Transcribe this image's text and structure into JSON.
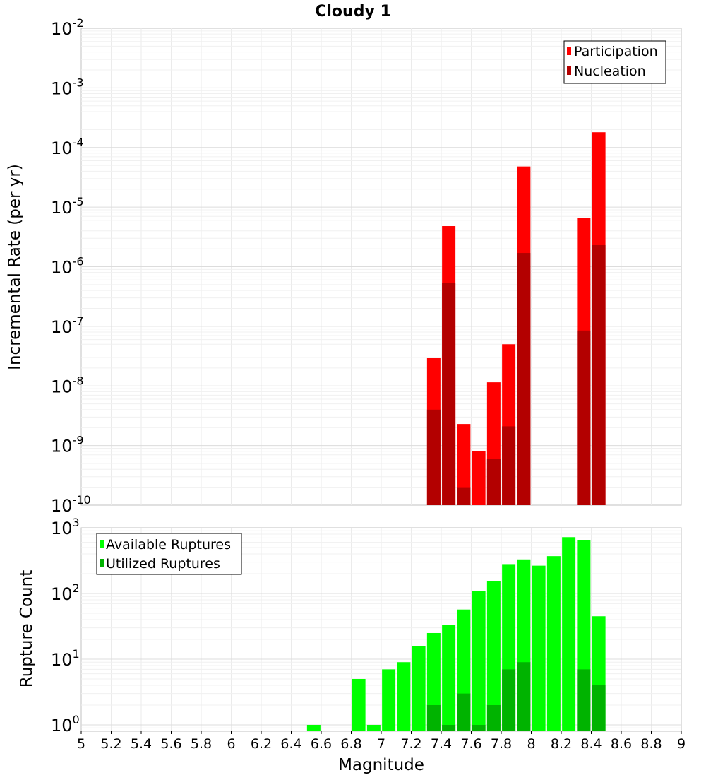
{
  "chart_data": [
    {
      "type": "bar",
      "title": "Cloudy 1",
      "ylabel": "Incremental Rate (per yr)",
      "xlabel": "",
      "y_scale": "log",
      "ylim": [
        1e-10,
        0.01
      ],
      "xlim": [
        5,
        9
      ],
      "grid": true,
      "legend": "top-right",
      "y_ticks": [
        {
          "base": "10",
          "exp": "-2"
        },
        {
          "base": "10",
          "exp": "-3"
        },
        {
          "base": "10",
          "exp": "-4"
        },
        {
          "base": "10",
          "exp": "-5"
        },
        {
          "base": "10",
          "exp": "-6"
        },
        {
          "base": "10",
          "exp": "-7"
        },
        {
          "base": "10",
          "exp": "-8"
        },
        {
          "base": "10",
          "exp": "-9"
        },
        {
          "base": "10",
          "exp": "-10"
        }
      ],
      "x": [
        7.35,
        7.45,
        7.55,
        7.65,
        7.75,
        7.85,
        7.95,
        8.35,
        8.45
      ],
      "series": [
        {
          "name": "Participation",
          "color": "#ff0000",
          "values": [
            3e-08,
            4.8e-06,
            2.3e-09,
            8e-10,
            1.15e-08,
            5e-08,
            4.8e-05,
            6.5e-06,
            0.00018
          ]
        },
        {
          "name": "Nucleation",
          "color": "#b30000",
          "values": [
            4e-09,
            5.3e-07,
            2e-10,
            null,
            6e-10,
            2.1e-09,
            1.7e-06,
            8.5e-08,
            2.3e-06
          ]
        }
      ]
    },
    {
      "type": "bar",
      "title": "",
      "ylabel": "Rupture Count",
      "xlabel": "Magnitude",
      "y_scale": "log",
      "ylim": [
        0.8,
        1000
      ],
      "xlim": [
        5,
        9
      ],
      "grid": true,
      "legend": "top-left",
      "y_ticks": [
        {
          "base": "10",
          "exp": "3",
          "value": 1000
        },
        {
          "base": "10",
          "exp": "2",
          "value": 100
        },
        {
          "base": "10",
          "exp": "1",
          "value": 10
        },
        {
          "base": "10",
          "exp": "0",
          "value": 1
        }
      ],
      "x_ticks": [
        "5",
        "5.2",
        "5.4",
        "5.6",
        "5.8",
        "6",
        "6.2",
        "6.4",
        "6.6",
        "6.8",
        "7",
        "7.2",
        "7.4",
        "7.6",
        "7.8",
        "8",
        "8.2",
        "8.4",
        "8.6",
        "8.8",
        "9"
      ],
      "x": [
        6.55,
        6.85,
        6.95,
        7.05,
        7.15,
        7.25,
        7.35,
        7.45,
        7.55,
        7.65,
        7.75,
        7.85,
        7.95,
        8.05,
        8.15,
        8.25,
        8.35,
        8.45
      ],
      "series": [
        {
          "name": "Available Ruptures",
          "color": "#00ff00",
          "values": [
            1,
            5,
            1,
            7,
            9,
            16,
            25,
            33,
            57,
            110,
            155,
            280,
            330,
            265,
            370,
            720,
            650,
            45
          ]
        },
        {
          "name": "Utilized Ruptures",
          "color": "#00b300",
          "values": [
            null,
            null,
            null,
            null,
            null,
            null,
            2,
            1,
            3,
            1,
            2,
            7,
            9,
            null,
            null,
            null,
            7,
            4
          ]
        }
      ]
    }
  ]
}
